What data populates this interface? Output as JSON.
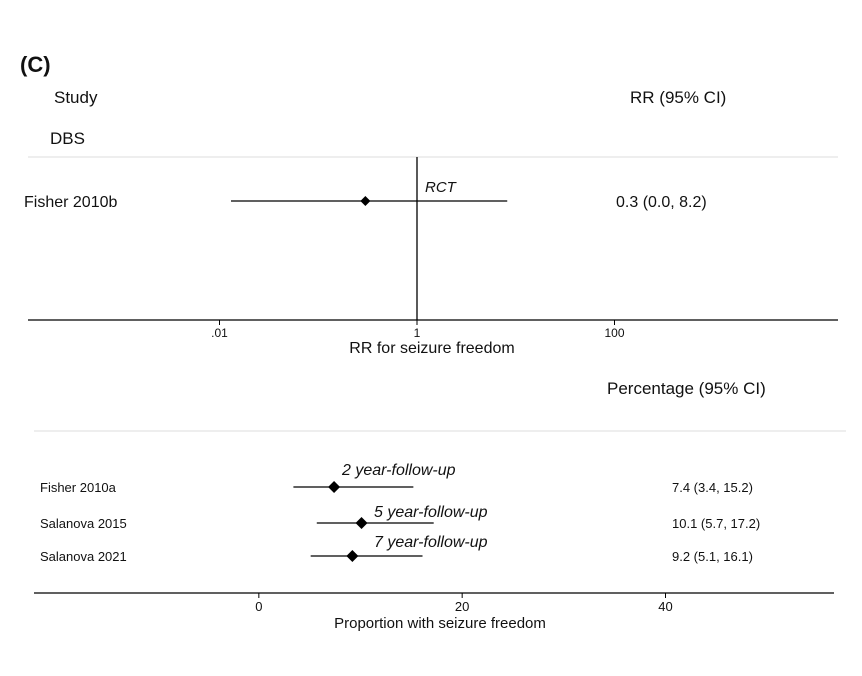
{
  "panel_label": "(C)",
  "chart_data": [
    {
      "type": "forest",
      "header_left": "Study",
      "header_right": "RR (95% CI)",
      "group_label": "DBS",
      "xscale": "log",
      "xlim": [
        0.0001,
        10000
      ],
      "ticks": [
        {
          "value": 0.01,
          "label": ".01"
        },
        {
          "value": 1,
          "label": "1"
        },
        {
          "value": 100,
          "label": "100"
        }
      ],
      "reference_line": 1,
      "xlabel": "RR for seizure freedom",
      "rows": [
        {
          "study": "Fisher 2010b",
          "estimate": 0.3,
          "lower": 0.0,
          "upper": 8.2,
          "ci_text": "0.3 (0.0, 8.2)",
          "annotation": "RCT"
        }
      ]
    },
    {
      "type": "forest",
      "header_right": "Percentage (95% CI)",
      "xscale": "linear",
      "xlim": [
        -11,
        55
      ],
      "ticks": [
        {
          "value": 0,
          "label": "0"
        },
        {
          "value": 20,
          "label": "20"
        },
        {
          "value": 40,
          "label": "40"
        }
      ],
      "xlabel": "Proportion with seizure freedom",
      "rows": [
        {
          "study": "Fisher 2010a",
          "estimate": 7.4,
          "lower": 3.4,
          "upper": 15.2,
          "ci_text": "7.4 (3.4, 15.2)",
          "annotation": "2 year-follow-up"
        },
        {
          "study": "Salanova 2015",
          "estimate": 10.1,
          "lower": 5.7,
          "upper": 17.2,
          "ci_text": "10.1 (5.7, 17.2)",
          "annotation": "5 year-follow-up"
        },
        {
          "study": "Salanova 2021",
          "estimate": 9.2,
          "lower": 5.1,
          "upper": 16.1,
          "ci_text": "9.2 (5.1, 16.1)",
          "annotation": "7 year-follow-up"
        }
      ]
    }
  ]
}
